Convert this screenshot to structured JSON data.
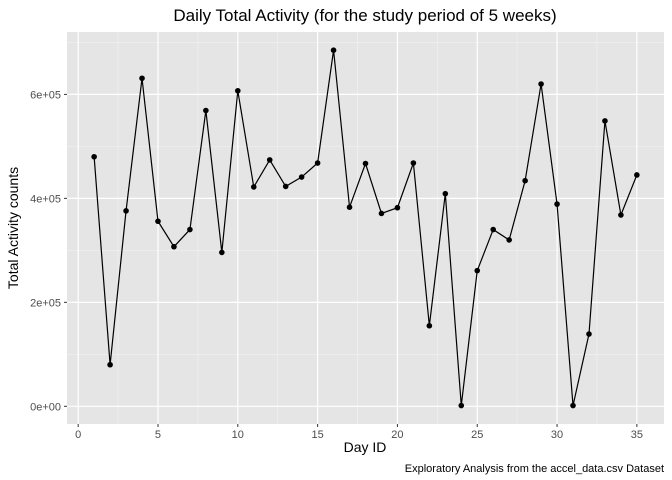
{
  "chart_data": {
    "type": "line",
    "title": "Daily Total Activity (for the study period of 5 weeks)",
    "xlabel": "Day ID",
    "ylabel": "Total Activity counts",
    "caption": "Exploratory Analysis from the accel_data.csv Dataset",
    "xlim": [
      -0.7,
      36.7
    ],
    "ylim": [
      -34000,
      720000
    ],
    "x_ticks": [
      0,
      5,
      10,
      15,
      20,
      25,
      30,
      35
    ],
    "x_tick_labels": [
      "0",
      "5",
      "10",
      "15",
      "20",
      "25",
      "30",
      "35"
    ],
    "x_minor_ticks": [
      2.5,
      7.5,
      12.5,
      17.5,
      22.5,
      27.5,
      32.5
    ],
    "y_ticks": [
      0,
      200000,
      400000,
      600000
    ],
    "y_tick_labels": [
      "0e+00",
      "2e+05",
      "4e+05",
      "6e+05"
    ],
    "y_minor_ticks": [
      100000,
      300000,
      500000,
      700000
    ],
    "grid": true,
    "background": "#e5e5e5",
    "line_color": "#000000",
    "point_color": "#000000",
    "series": [
      {
        "x": [
          1,
          2,
          3,
          4,
          5,
          6,
          7,
          8,
          9,
          10,
          11,
          12,
          13,
          14,
          15,
          16,
          17,
          18,
          19,
          20,
          21,
          22,
          23,
          24,
          25,
          26,
          27,
          28,
          29,
          30,
          31,
          32,
          33,
          34,
          35
        ],
        "values": [
          480000,
          80000,
          376000,
          631000,
          356000,
          307000,
          340000,
          569000,
          296000,
          607000,
          422000,
          474000,
          423000,
          441000,
          468000,
          685000,
          383000,
          467000,
          371000,
          382000,
          468000,
          155000,
          409000,
          1440,
          261000,
          340000,
          320000,
          434000,
          620000,
          389000,
          1440,
          139000,
          549000,
          368000,
          445000
        ]
      }
    ]
  }
}
